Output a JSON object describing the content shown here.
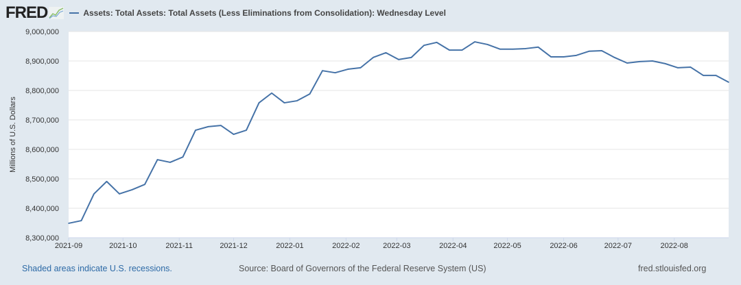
{
  "header": {
    "logo": "FRED",
    "logo_icon": "line-chart-icon",
    "series_title": "Assets: Total Assets: Total Assets (Less Eliminations from Consolidation): Wednesday Level"
  },
  "footer": {
    "recessions": "Shaded areas indicate U.S. recessions.",
    "source": "Source: Board of Governors of the Federal Reserve System (US)",
    "site": "fred.stlouisfed.org"
  },
  "colors": {
    "line": "#4572a7",
    "background": "#e1e9f0",
    "link": "#2d6aa6"
  },
  "chart_data": {
    "type": "line",
    "title": "",
    "xlabel": "",
    "ylabel": "Millions of U.S. Dollars",
    "xlim": [
      "2021-09-01",
      "2022-08-31"
    ],
    "ylim": [
      8300000,
      9000000
    ],
    "grid": true,
    "legend": "top-left",
    "y_ticks": [
      8300000,
      8400000,
      8500000,
      8600000,
      8700000,
      8800000,
      8900000,
      9000000
    ],
    "y_tick_labels": [
      "8,300,000",
      "8,400,000",
      "8,500,000",
      "8,600,000",
      "8,700,000",
      "8,800,000",
      "8,900,000",
      "9,000,000"
    ],
    "x_ticks": [
      "2021-09-01",
      "2021-10-01",
      "2021-11-01",
      "2021-12-01",
      "2022-01-01",
      "2022-02-01",
      "2022-03-01",
      "2022-04-01",
      "2022-05-01",
      "2022-06-01",
      "2022-07-01",
      "2022-08-01"
    ],
    "x_tick_labels": [
      "2021-09",
      "2021-10",
      "2021-11",
      "2021-12",
      "2022-01",
      "2022-02",
      "2022-03",
      "2022-04",
      "2022-05",
      "2022-06",
      "2022-07",
      "2022-08"
    ],
    "series": [
      {
        "name": "Assets: Total Assets: Total Assets (Less Eliminations from Consolidation): Wednesday Level",
        "x": [
          "2021-09-01",
          "2021-09-08",
          "2021-09-15",
          "2021-09-22",
          "2021-09-29",
          "2021-10-06",
          "2021-10-13",
          "2021-10-20",
          "2021-10-27",
          "2021-11-03",
          "2021-11-10",
          "2021-11-17",
          "2021-11-24",
          "2021-12-01",
          "2021-12-08",
          "2021-12-15",
          "2021-12-22",
          "2021-12-29",
          "2022-01-05",
          "2022-01-12",
          "2022-01-19",
          "2022-01-26",
          "2022-02-02",
          "2022-02-09",
          "2022-02-16",
          "2022-02-23",
          "2022-03-02",
          "2022-03-09",
          "2022-03-16",
          "2022-03-23",
          "2022-03-30",
          "2022-04-06",
          "2022-04-13",
          "2022-04-20",
          "2022-04-27",
          "2022-05-04",
          "2022-05-11",
          "2022-05-18",
          "2022-05-25",
          "2022-06-01",
          "2022-06-08",
          "2022-06-15",
          "2022-06-22",
          "2022-06-29",
          "2022-07-06",
          "2022-07-13",
          "2022-07-20",
          "2022-07-27",
          "2022-08-03",
          "2022-08-10",
          "2022-08-17",
          "2022-08-24",
          "2022-08-31"
        ],
        "values": [
          8349000,
          8358000,
          8449000,
          8491000,
          8449000,
          8463000,
          8481000,
          8565000,
          8556000,
          8574000,
          8665000,
          8677000,
          8681000,
          8651000,
          8665000,
          8758000,
          8791000,
          8758000,
          8765000,
          8788000,
          8867000,
          8860000,
          8872000,
          8877000,
          8912000,
          8928000,
          8905000,
          8912000,
          8953000,
          8963000,
          8937000,
          8937000,
          8965000,
          8956000,
          8940000,
          8940000,
          8942000,
          8947000,
          8914000,
          8914000,
          8919000,
          8933000,
          8935000,
          8912000,
          8893000,
          8898000,
          8900000,
          8891000,
          8877000,
          8879000,
          8851000,
          8851000,
          8828000
        ]
      }
    ]
  }
}
